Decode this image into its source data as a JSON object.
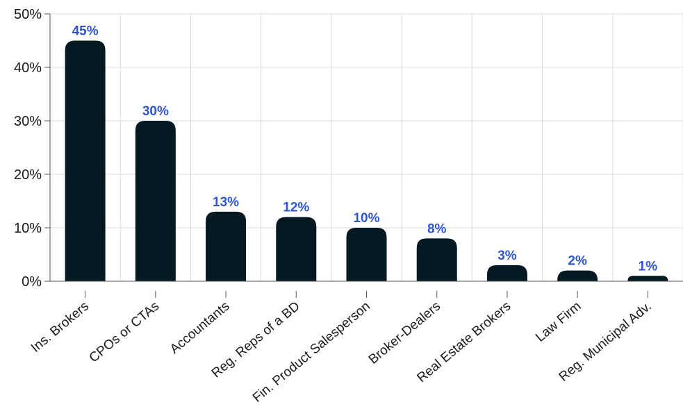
{
  "chart_data": {
    "type": "bar",
    "categories": [
      "Ins. Brokers",
      "CPOs or CTAs",
      "Accountants",
      "Reg. Reps of a BD",
      "Fin. Product Salesperson",
      "Broker-Dealers",
      "Real Estate Brokers",
      "Law Firm",
      "Reg. Municipal Adv."
    ],
    "values": [
      45,
      30,
      13,
      12,
      10,
      8,
      3,
      2,
      1
    ],
    "value_labels": [
      "45%",
      "30%",
      "13%",
      "12%",
      "10%",
      "8%",
      "3%",
      "2%",
      "1%"
    ],
    "y_ticks": [
      0,
      10,
      20,
      30,
      40,
      50
    ],
    "y_tick_labels": [
      "0%",
      "10%",
      "20%",
      "30%",
      "40%",
      "50%"
    ],
    "ylim": [
      0,
      50
    ],
    "grid": true,
    "colors": {
      "bar": "#051923",
      "data_label": "#2f55d4"
    }
  }
}
